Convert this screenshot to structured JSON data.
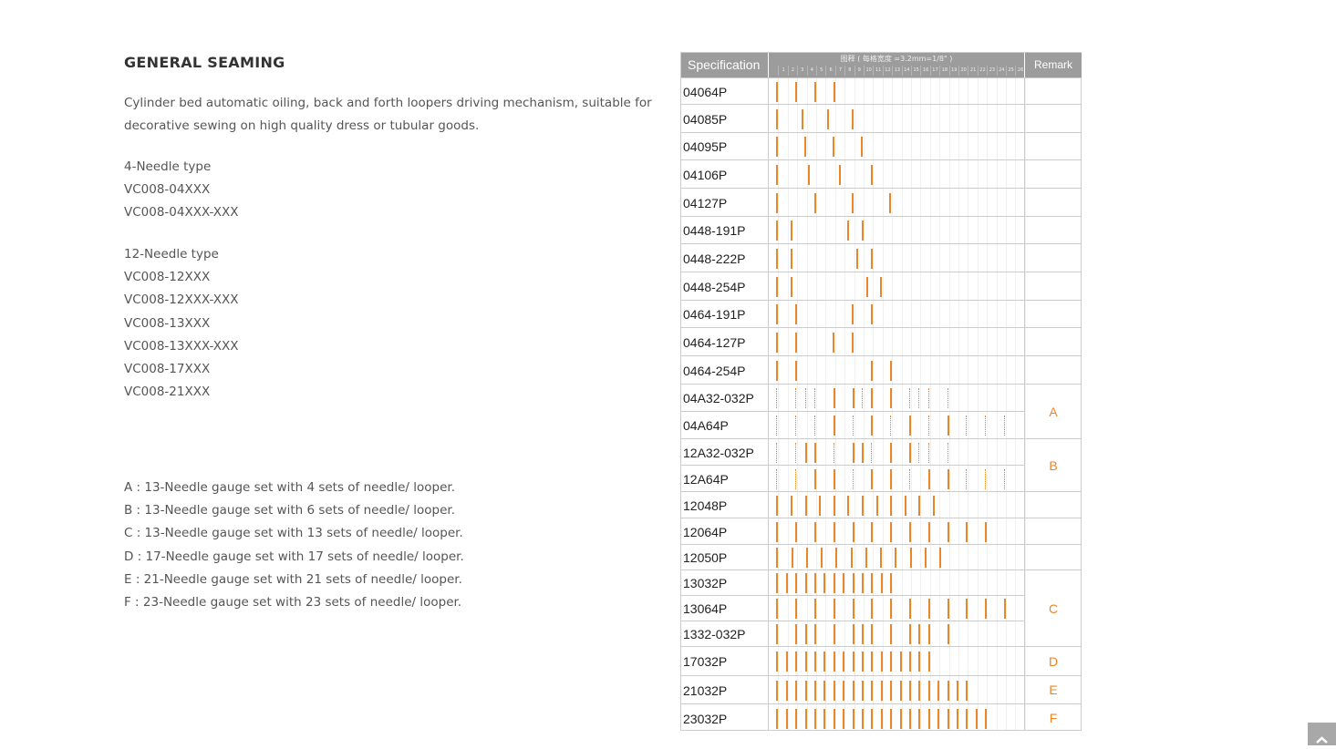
{
  "title": "GENERAL SEAMING",
  "description": [
    "Cylinder bed automatic oiling, back and forth loopers driving mechanism, suitable for",
    "decorative sewing on high quality dress or tubular goods."
  ],
  "four_needle": [
    "4-Needle type",
    "VC008-04XXX",
    "VC008-04XXX-XXX"
  ],
  "twelve_needle": [
    "12-Needle type",
    "VC008-12XXX",
    "VC008-12XXX-XXX",
    "VC008-13XXX",
    "VC008-13XXX-XXX",
    "VC008-17XXX",
    "VC008-21XXX"
  ],
  "notes": [
    "A : 13-Needle gauge set with 4 sets of needle/ looper.",
    "B : 13-Needle gauge set with 6 sets of needle/ looper.",
    "C : 13-Needle gauge set with 13 sets of needle/ looper.",
    "D : 17-Needle gauge set with 17 sets of needle/ looper.",
    "E : 21-Needle gauge set with 21 sets of needle/ looper.",
    "F : 23-Needle gauge set with 23 sets of needle/ looper."
  ],
  "table": {
    "header_spec": "Specification",
    "header_diagram": "图释 ( 每格宽度 =3.2mm=1/8\" )",
    "header_remark": "Remark",
    "grid_numbers": [
      "1",
      "2",
      "3",
      "4",
      "5",
      "6",
      "7",
      "8",
      "9",
      "10",
      "11",
      "12",
      "13",
      "14",
      "15",
      "16",
      "17",
      "18",
      "19",
      "20",
      "21",
      "22",
      "23",
      "24",
      "25",
      "26"
    ],
    "needle_color": "#e8862a",
    "rows": [
      {
        "spec": "04064P",
        "needles_mm": [
          0,
          6.4,
          12.8,
          19.2
        ]
      },
      {
        "spec": "04085P",
        "needles_mm": [
          0,
          8.5,
          17,
          25.5
        ]
      },
      {
        "spec": "04095P",
        "needles_mm": [
          0,
          9.5,
          19,
          28.5
        ]
      },
      {
        "spec": "04106P",
        "needles_mm": [
          0,
          10.6,
          21.2,
          31.8
        ]
      },
      {
        "spec": "04127P",
        "needles_mm": [
          0,
          12.7,
          25.4,
          38.1
        ]
      },
      {
        "spec": "0448-191P",
        "needles_mm": [
          0,
          4.8,
          23.9,
          28.7
        ]
      },
      {
        "spec": "0448-222P",
        "needles_mm": [
          0,
          4.8,
          27,
          31.8
        ]
      },
      {
        "spec": "0448-254P",
        "needles_mm": [
          0,
          4.8,
          30.2,
          35
        ]
      },
      {
        "spec": "0464-191P",
        "needles_mm": [
          0,
          6.4,
          25.5,
          31.9
        ]
      },
      {
        "spec": "0464-127P",
        "needles_mm": [
          0,
          6.4,
          19.1,
          25.5
        ]
      },
      {
        "spec": "0464-254P",
        "needles_mm": [
          0,
          6.4,
          31.8,
          38.2
        ]
      },
      {
        "spec": "04A32-032P",
        "needles_mm": [
          19.2,
          25.6,
          32,
          38.4
        ],
        "dotted_mm": [
          0,
          6.4,
          9.6,
          12.8,
          28.8,
          44.8,
          48,
          51.2,
          57.6
        ]
      },
      {
        "spec": "04A64P",
        "needles_mm": [
          19.2,
          32,
          44.8,
          57.6
        ],
        "dotted_mm": [
          0,
          6.4,
          12.8,
          25.6,
          38.4,
          51.2,
          64,
          70.4,
          76.8
        ]
      },
      {
        "spec": "12A32-032P",
        "needles_mm": [
          9.6,
          12.8,
          25.6,
          28.8,
          38.4,
          44.8
        ],
        "dotted_mm": [
          0,
          6.4,
          19.2,
          32,
          48,
          51.2,
          57.6
        ]
      },
      {
        "spec": "12A64P",
        "needles_mm": [
          12.8,
          19.2,
          32,
          38.4,
          51.2,
          57.6
        ],
        "dotted_mm": [
          0,
          6.4,
          25.6,
          44.8,
          64,
          70.4,
          76.8
        ]
      },
      {
        "spec": "12048P",
        "count": 12,
        "pitch_mm": 4.8
      },
      {
        "spec": "12064P",
        "count": 12,
        "pitch_mm": 6.4
      },
      {
        "spec": "12050P",
        "count": 12,
        "pitch_mm": 5.0
      },
      {
        "spec": "13032P",
        "count": 13,
        "pitch_mm": 3.2
      },
      {
        "spec": "13064P",
        "count": 13,
        "pitch_mm": 6.4
      },
      {
        "spec": "1332-032P",
        "needles_mm": [
          0,
          6.4,
          9.6,
          12.8,
          19.2,
          25.6,
          28.8,
          32,
          38.4,
          44.8,
          48,
          51.2,
          57.6
        ]
      },
      {
        "spec": "17032P",
        "count": 17,
        "pitch_mm": 3.2
      },
      {
        "spec": "21032P",
        "count": 21,
        "pitch_mm": 3.2
      },
      {
        "spec": "23032P",
        "count": 23,
        "pitch_mm": 3.2
      }
    ],
    "remarks": [
      {
        "label": "",
        "rows": [
          0,
          10
        ]
      },
      {
        "label": "A",
        "rows": [
          11,
          12
        ]
      },
      {
        "label": "B",
        "rows": [
          13,
          14
        ]
      },
      {
        "label": "",
        "rows": [
          15,
          17
        ]
      },
      {
        "label": "C",
        "rows": [
          18,
          20
        ]
      },
      {
        "label": "D",
        "rows": [
          21,
          21
        ]
      },
      {
        "label": "E",
        "rows": [
          22,
          22
        ]
      },
      {
        "label": "F",
        "rows": [
          23,
          23
        ]
      }
    ]
  }
}
